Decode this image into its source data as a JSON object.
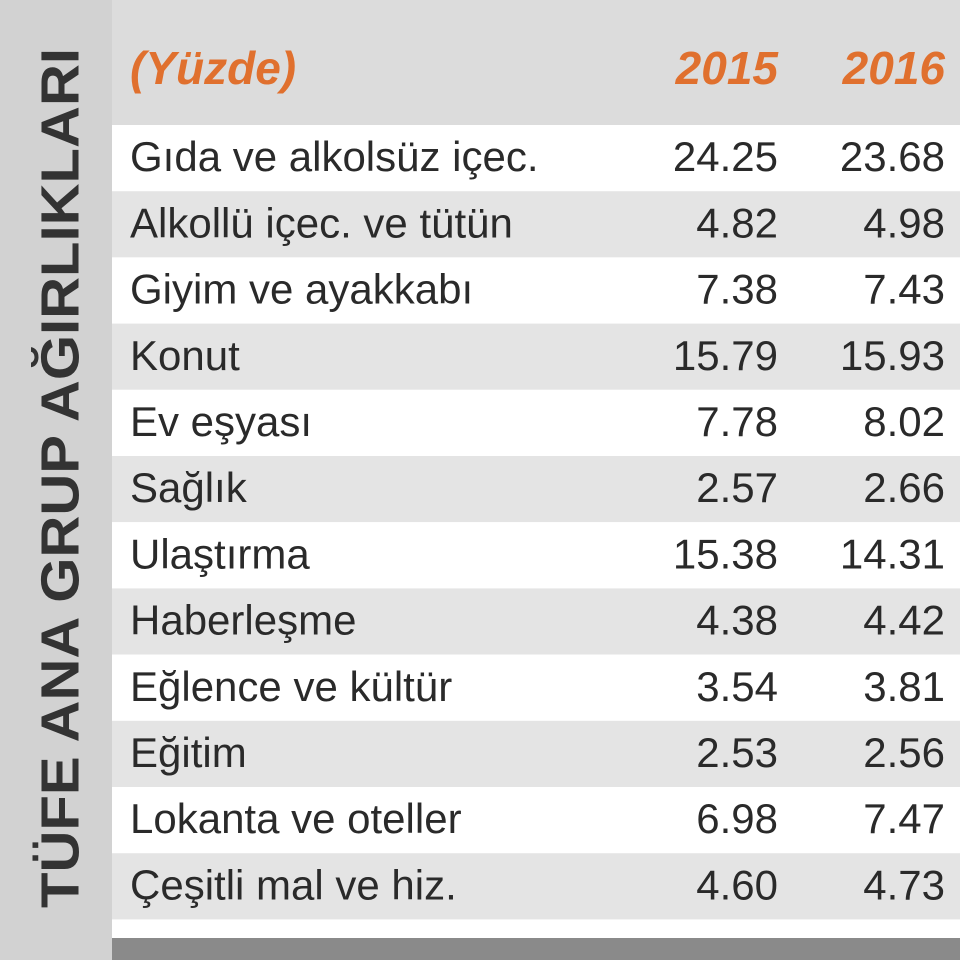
{
  "title": "TÜFE ANA GRUP AĞIRLIKLARI",
  "table": {
    "header": [
      "(Yüzde)",
      "2015",
      "2016"
    ],
    "rows": [
      [
        "Gıda ve alkolsüz içec.",
        "24.25",
        "23.68"
      ],
      [
        "Alkollü içec. ve tütün",
        "4.82",
        "4.98"
      ],
      [
        "Giyim ve ayakkabı",
        "7.38",
        "7.43"
      ],
      [
        "Konut",
        "15.79",
        "15.93"
      ],
      [
        "Ev eşyası",
        "7.78",
        "8.02"
      ],
      [
        "Sağlık",
        "2.57",
        "2.66"
      ],
      [
        "Ulaştırma",
        "15.38",
        "14.31"
      ],
      [
        "Haberleşme",
        "4.38",
        "4.42"
      ],
      [
        "Eğlence ve kültür",
        "3.54",
        "3.81"
      ],
      [
        "Eğitim",
        "2.53",
        "2.56"
      ],
      [
        "Lokanta ve oteller",
        "6.98",
        "7.47"
      ],
      [
        "Çeşitli mal ve hiz.",
        "4.60",
        "4.73"
      ]
    ]
  }
}
